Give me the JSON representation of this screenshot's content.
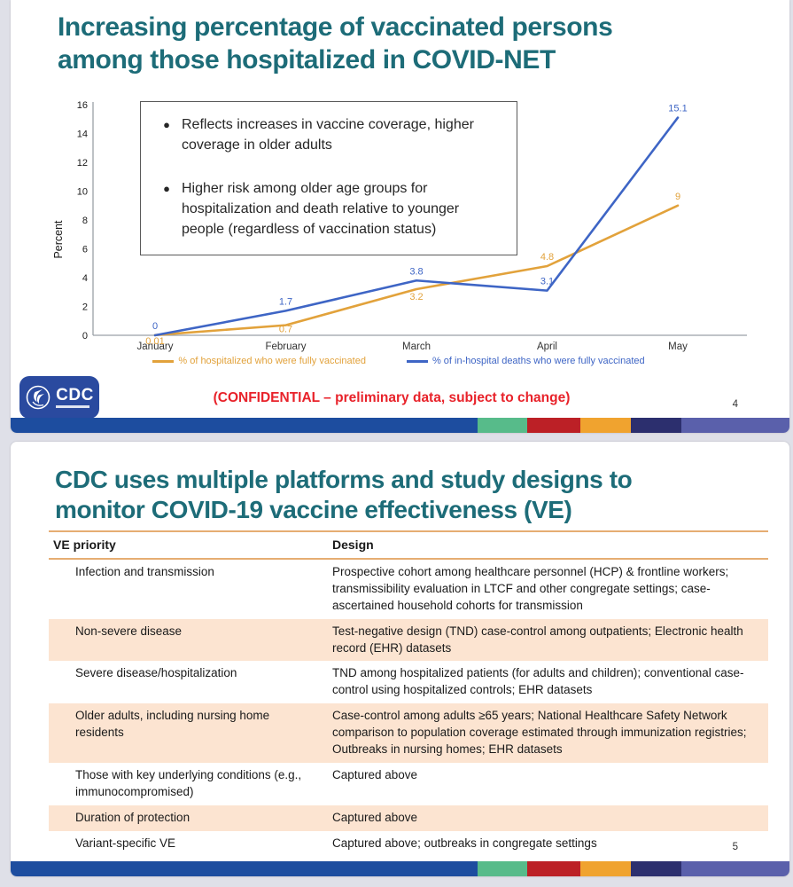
{
  "slide1": {
    "title": "Increasing percentage of vaccinated persons among those hospitalized in COVID-NET",
    "callout_bullets": [
      "Reflects increases in vaccine coverage, higher coverage in older adults",
      "Higher risk among older age groups for hospitalization and death relative to younger people (regardless of vaccination status)"
    ],
    "confidential": "(CONFIDENTIAL – preliminary data, subject to change)",
    "logo_text": "CDC",
    "page_number": "4"
  },
  "chart_data": {
    "type": "line",
    "title": "",
    "xlabel": "",
    "ylabel": "Percent",
    "categories": [
      "January",
      "February",
      "March",
      "April",
      "May"
    ],
    "series": [
      {
        "name": "% of hospitalized who were fully vaccinated",
        "color": "#e2a23b",
        "values": [
          0.01,
          0.7,
          3.2,
          4.8,
          9
        ],
        "labels": [
          "0.01",
          "0.7",
          "3.2",
          "4.8",
          "9"
        ],
        "label_dy": [
          10,
          8,
          12,
          -7,
          -7
        ]
      },
      {
        "name": "% of in-hospital deaths who were fully vaccinated",
        "color": "#3e65c5",
        "values": [
          0,
          1.7,
          3.8,
          3.1,
          15.1
        ],
        "labels": [
          "0",
          "1.7",
          "3.8",
          "3.1",
          "15.1"
        ],
        "label_dy": [
          -7,
          -7,
          -7,
          -7,
          -7
        ]
      }
    ],
    "ylim": [
      0,
      16
    ],
    "ytick_step": 2,
    "grid": false,
    "legend_position": "bottom"
  },
  "slide2": {
    "title": "CDC uses multiple platforms and study designs to monitor COVID-19 vaccine effectiveness (VE)",
    "page_number": "5",
    "table": {
      "headers": [
        "VE priority",
        "Design"
      ],
      "rows": [
        {
          "priority": "Infection and transmission",
          "design": "Prospective cohort among healthcare personnel (HCP) & frontline workers; transmissibility evaluation in LTCF and other congregate settings; case-ascertained household cohorts for transmission",
          "shaded": false
        },
        {
          "priority": "Non-severe disease",
          "design": "Test-negative design (TND) case-control among outpatients; Electronic health record (EHR) datasets",
          "shaded": true
        },
        {
          "priority": "Severe disease/hospitalization",
          "design": "TND among hospitalized patients (for adults and children); conventional case-control using hospitalized controls; EHR datasets",
          "shaded": false
        },
        {
          "priority": "Older adults, including nursing home residents",
          "design": "Case-control among adults ≥65 years; National Healthcare Safety Network comparison to population coverage estimated through immunization registries; Outbreaks in nursing homes; EHR datasets",
          "shaded": true
        },
        {
          "priority": "Those with key underlying conditions (e.g., immunocompromised)",
          "design": "Captured above",
          "shaded": false
        },
        {
          "priority": "Duration of protection",
          "design": "Captured above",
          "shaded": true
        },
        {
          "priority": "Variant-specific VE",
          "design": "Captured above; outbreaks in congregate settings",
          "shaded": false
        }
      ]
    }
  },
  "footer_bar": {
    "segments": [
      {
        "color": "#1d4d9f",
        "width_pct": 60.0
      },
      {
        "color": "#57bb8a",
        "width_pct": 6.3
      },
      {
        "color": "#bc2026",
        "width_pct": 6.8
      },
      {
        "color": "#f0a32f",
        "width_pct": 6.5
      },
      {
        "color": "#2c2f6e",
        "width_pct": 6.5
      },
      {
        "color": "#5a60ab",
        "width_pct": 13.9
      }
    ]
  },
  "colors": {
    "title_teal": "#1d6c78",
    "line_blue": "#3e65c5",
    "line_orange": "#e2a23b",
    "confidential_red": "#e8222a",
    "table_rule_tan": "#e6ad72",
    "row_shade_peach": "#fce4d1",
    "logo_blue": "#2a4a9f"
  }
}
